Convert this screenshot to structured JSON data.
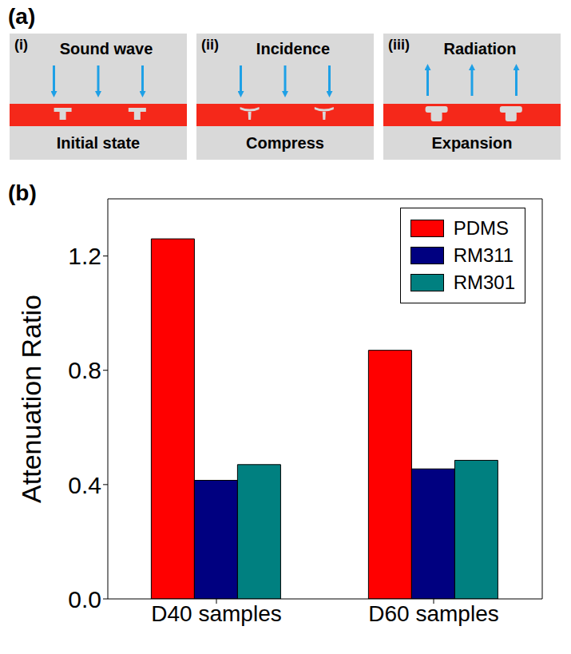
{
  "diagram": {
    "label": "(a)",
    "panels": [
      {
        "number": "(i)",
        "text": "Sound wave",
        "caption": "Initial state",
        "arrow": "down"
      },
      {
        "number": "(ii)",
        "text": "Incidence",
        "caption": "Compress",
        "arrow": "down"
      },
      {
        "number": "(iii)",
        "text": "Radiation",
        "caption": "Expansion",
        "arrow": "up"
      }
    ]
  },
  "chart_data": {
    "label": "(b)",
    "type": "bar",
    "y_label": "Attenuation Ratio",
    "categories": [
      "D40 samples",
      "D60 samples"
    ],
    "series": [
      {
        "name": "PDMS",
        "color": "#ff0000",
        "values": [
          1.26,
          0.87
        ]
      },
      {
        "name": "RM311",
        "color": "#000080",
        "values": [
          0.415,
          0.455
        ]
      },
      {
        "name": "RM301",
        "color": "#008080",
        "values": [
          0.47,
          0.485
        ]
      }
    ],
    "ylim": [
      0,
      1.4
    ],
    "yticks": [
      {
        "value": 0,
        "label": "0.0"
      },
      {
        "value": 0.4,
        "label": "0.4"
      },
      {
        "value": 0.8,
        "label": "0.8"
      },
      {
        "value": 1.2,
        "label": "1.2"
      }
    ],
    "legend": "top right"
  }
}
